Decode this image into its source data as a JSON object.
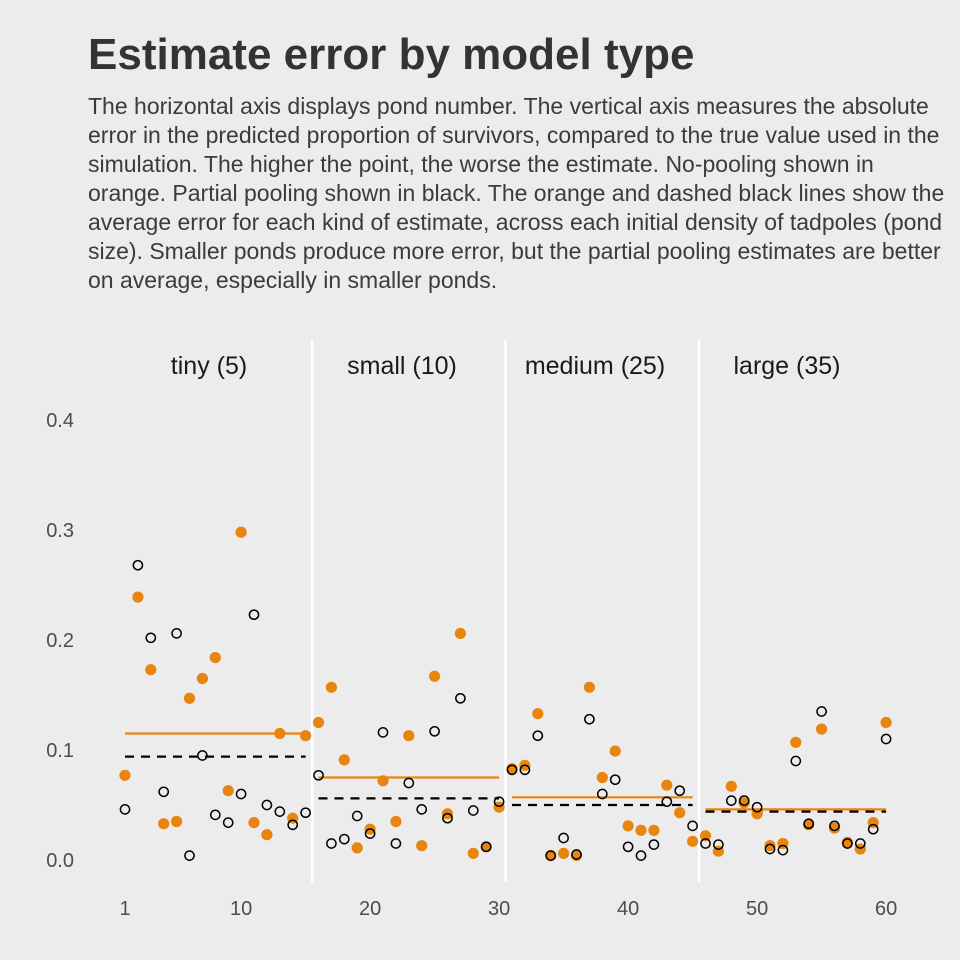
{
  "chart_data": {
    "type": "scatter",
    "title": "Estimate error by model type",
    "subtitle": "The horizontal axis displays pond number. The vertical axis measures the absolute error in the predicted proportion of survivors, compared to the true value used in the simulation. The higher the point, the worse the estimate. No-pooling shown in orange. Partial pooling shown in black. The orange and dashed black lines show the average error for each kind of estimate, across each initial density of tadpoles (pond size). Smaller ponds produce more error, but the partial pooling estimates are better on average, especially in smaller ponds.",
    "xlabel": "",
    "ylabel": "",
    "xlim": [
      0.5,
      60.5
    ],
    "ylim": [
      0,
      0.4
    ],
    "x_ticks": [
      1,
      10,
      20,
      30,
      40,
      50,
      60
    ],
    "y_ticks": [
      0.0,
      0.1,
      0.2,
      0.3,
      0.4
    ],
    "y_tick_labels": [
      "0.0",
      "0.1",
      "0.2",
      "0.3",
      "0.4"
    ],
    "grid": false,
    "colors": {
      "no_pooling": "#e8850f",
      "partial_pooling": "#000000",
      "divider": "#ffffff"
    },
    "panels": [
      {
        "label": "tiny (5)",
        "start": 1,
        "end": 15,
        "mean_no_pooling": 0.115,
        "mean_partial_pooling": 0.094
      },
      {
        "label": "small (10)",
        "start": 16,
        "end": 30,
        "mean_no_pooling": 0.075,
        "mean_partial_pooling": 0.056
      },
      {
        "label": "medium (25)",
        "start": 31,
        "end": 45,
        "mean_no_pooling": 0.057,
        "mean_partial_pooling": 0.05
      },
      {
        "label": "large (35)",
        "start": 46,
        "end": 60,
        "mean_no_pooling": 0.046,
        "mean_partial_pooling": 0.044
      }
    ],
    "x": [
      1,
      2,
      3,
      4,
      5,
      6,
      7,
      8,
      9,
      10,
      11,
      12,
      13,
      14,
      15,
      16,
      17,
      18,
      19,
      20,
      21,
      22,
      23,
      24,
      25,
      26,
      27,
      28,
      29,
      30,
      31,
      32,
      33,
      34,
      35,
      36,
      37,
      38,
      39,
      40,
      41,
      42,
      43,
      44,
      45,
      46,
      47,
      48,
      49,
      50,
      51,
      52,
      53,
      54,
      55,
      56,
      57,
      58,
      59,
      60
    ],
    "series": [
      {
        "name": "No-pooling",
        "marker": "filled",
        "values": [
          0.077,
          0.239,
          0.173,
          0.033,
          0.035,
          0.147,
          0.165,
          0.184,
          0.063,
          0.298,
          0.034,
          0.023,
          0.115,
          0.038,
          0.113,
          0.125,
          0.157,
          0.091,
          0.011,
          0.028,
          0.072,
          0.035,
          0.113,
          0.013,
          0.167,
          0.042,
          0.206,
          0.006,
          0.012,
          0.048,
          0.083,
          0.086,
          0.133,
          0.004,
          0.006,
          0.004,
          0.157,
          0.075,
          0.099,
          0.031,
          0.027,
          0.027,
          0.068,
          0.043,
          0.017,
          0.022,
          0.008,
          0.067,
          0.052,
          0.042,
          0.013,
          0.015,
          0.107,
          0.032,
          0.119,
          0.029,
          0.016,
          0.01,
          0.034,
          0.125
        ]
      },
      {
        "name": "Partial pooling",
        "marker": "open",
        "values": [
          0.046,
          0.268,
          0.202,
          0.062,
          0.206,
          0.004,
          0.095,
          0.041,
          0.034,
          0.06,
          0.223,
          0.05,
          0.044,
          0.032,
          0.043,
          0.077,
          0.015,
          0.019,
          0.04,
          0.024,
          0.116,
          0.015,
          0.07,
          0.046,
          0.117,
          0.038,
          0.147,
          0.045,
          0.012,
          0.053,
          0.082,
          0.082,
          0.113,
          0.004,
          0.02,
          0.005,
          0.128,
          0.06,
          0.073,
          0.012,
          0.004,
          0.014,
          0.053,
          0.063,
          0.031,
          0.015,
          0.014,
          0.054,
          0.054,
          0.048,
          0.01,
          0.009,
          0.09,
          0.033,
          0.135,
          0.031,
          0.015,
          0.015,
          0.028,
          0.11
        ]
      }
    ]
  }
}
